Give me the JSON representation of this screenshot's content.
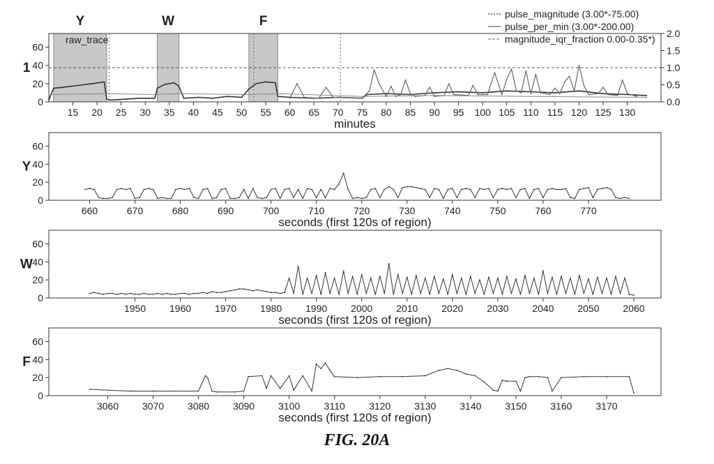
{
  "figure": {
    "caption": "FIG. 20A"
  },
  "chart_data": [
    {
      "type": "line",
      "panel_label": "1",
      "xlabel": "minutes",
      "xlim": [
        10,
        137
      ],
      "xticks": [
        15,
        20,
        25,
        30,
        35,
        40,
        45,
        50,
        55,
        60,
        65,
        70,
        75,
        80,
        85,
        90,
        95,
        100,
        105,
        110,
        115,
        120,
        125,
        130
      ],
      "ylim": [
        0,
        75
      ],
      "yticks": [
        0,
        20,
        40,
        60
      ],
      "y2lim": [
        0,
        2.0
      ],
      "y2ticks": [
        "0.0",
        "0.5",
        "1.0",
        "1.5",
        "2.0"
      ],
      "hline_y2": 1.0,
      "vline_x": [
        22.5,
        52.5,
        70.5
      ],
      "trace_label": "raw_trace",
      "regions": [
        {
          "label": "Y",
          "x0": 11,
          "x1": 22
        },
        {
          "label": "W",
          "x0": 32.5,
          "x1": 37
        },
        {
          "label": "F",
          "x0": 51.5,
          "x1": 57.5
        }
      ],
      "legend_position": "top-right",
      "series": [
        {
          "name": "pulse_magnitude (3.00*-75.00)",
          "x": [
            10,
            11,
            13,
            16,
            19,
            21.5,
            22,
            23,
            26,
            29,
            32,
            32.5,
            34,
            36,
            37,
            38,
            41,
            44,
            47,
            50,
            51.5,
            53,
            55,
            57,
            57.5,
            60,
            65,
            70,
            75,
            76,
            80,
            85,
            90,
            95,
            100,
            105,
            110,
            115,
            120,
            125,
            130,
            134
          ],
          "values": [
            2,
            15,
            16,
            18,
            20,
            22,
            3,
            2,
            3,
            4,
            4,
            15,
            19,
            21,
            17,
            4,
            5,
            4,
            6,
            5,
            14,
            20,
            22,
            21,
            6,
            5,
            4,
            5,
            4,
            8,
            9,
            8,
            10,
            11,
            10,
            12,
            11,
            10,
            12,
            9,
            8,
            7
          ]
        },
        {
          "name": "pulse_per_min (3.00*-200.00)",
          "x": [
            60,
            61.5,
            63,
            66,
            67.5,
            69,
            75,
            76.5,
            77.5,
            78.5,
            80,
            81,
            82,
            83,
            84,
            85,
            86,
            88,
            89,
            90,
            92,
            93,
            94,
            97,
            98,
            99,
            101,
            102.5,
            104,
            105,
            106,
            107,
            108,
            109,
            110,
            111,
            112,
            114,
            115,
            116,
            117,
            118,
            119,
            120,
            121,
            122,
            124,
            125,
            126,
            128,
            129,
            130,
            132
          ],
          "values": [
            4,
            20,
            5,
            4,
            16,
            5,
            4,
            12,
            35,
            20,
            6,
            17,
            6,
            8,
            24,
            9,
            6,
            7,
            16,
            6,
            7,
            20,
            8,
            7,
            18,
            8,
            8,
            32,
            8,
            25,
            36,
            12,
            10,
            34,
            9,
            30,
            10,
            8,
            15,
            9,
            22,
            28,
            12,
            40,
            18,
            8,
            9,
            16,
            8,
            7,
            24,
            9,
            6
          ]
        },
        {
          "name": "magnitude_iqr_fraction 0.00-0.35*)",
          "x": [
            10,
            22,
            32,
            37,
            51,
            58,
            75,
            90,
            110,
            134
          ],
          "values": [
            8,
            9,
            8,
            9,
            8,
            9,
            6,
            7,
            6,
            5
          ]
        }
      ]
    },
    {
      "type": "line",
      "panel_label": "Y",
      "xlabel": "seconds (first 120s of region)",
      "xlim": [
        651,
        786
      ],
      "xticks": [
        660,
        670,
        680,
        690,
        700,
        710,
        720,
        730,
        740,
        750,
        760,
        770
      ],
      "ylim": [
        0,
        75
      ],
      "yticks": [
        0,
        20,
        40,
        60
      ],
      "series": [
        {
          "x": [
            659,
            660,
            661,
            662,
            663,
            664,
            665,
            666,
            667,
            668,
            669,
            670,
            671,
            672,
            673,
            674,
            675,
            676,
            677,
            678,
            679,
            680,
            681,
            682,
            683,
            684,
            685,
            686,
            687,
            688,
            689,
            690,
            691,
            692,
            693,
            694,
            695,
            696,
            697,
            698,
            699,
            700,
            701,
            702,
            703,
            704,
            705,
            706,
            707,
            708,
            709,
            710,
            711,
            712,
            713,
            714,
            715,
            716,
            717,
            718,
            719,
            720,
            721,
            722,
            723,
            724,
            725,
            726,
            727,
            728,
            729,
            730,
            731,
            732,
            733,
            734,
            735,
            736,
            737,
            738,
            739,
            740,
            741,
            742,
            743,
            744,
            745,
            746,
            747,
            748,
            749,
            750,
            751,
            752,
            753,
            754,
            755,
            756,
            757,
            758,
            759,
            760,
            761,
            762,
            763,
            764,
            765,
            766,
            767,
            768,
            769,
            770,
            771,
            772,
            773,
            774,
            775,
            776,
            777,
            778,
            779
          ],
          "values": [
            12,
            13,
            12,
            3,
            2,
            2,
            3,
            12,
            13,
            12,
            13,
            2,
            3,
            12,
            13,
            12,
            2,
            3,
            2,
            2,
            12,
            13,
            12,
            13,
            3,
            2,
            12,
            13,
            2,
            3,
            12,
            13,
            2,
            2,
            3,
            12,
            2,
            13,
            3,
            2,
            3,
            12,
            13,
            2,
            12,
            13,
            3,
            12,
            2,
            13,
            12,
            3,
            12,
            3,
            13,
            12,
            18,
            30,
            12,
            2,
            3,
            2,
            3,
            12,
            13,
            3,
            12,
            15,
            12,
            3,
            14,
            15,
            15,
            14,
            13,
            12,
            3,
            13,
            12,
            2,
            12,
            13,
            3,
            12,
            13,
            12,
            3,
            13,
            12,
            13,
            3,
            12,
            13,
            12,
            13,
            3,
            12,
            13,
            2,
            12,
            13,
            3,
            12,
            13,
            12,
            12,
            13,
            3,
            2,
            12,
            13,
            14,
            3,
            12,
            13,
            14,
            12,
            3,
            2,
            3,
            2
          ]
        }
      ]
    },
    {
      "type": "line",
      "panel_label": "W",
      "xlabel": "seconds (first 120s of region)",
      "xlim": [
        1931,
        2066
      ],
      "xticks": [
        1950,
        1960,
        1970,
        1980,
        1990,
        2000,
        2010,
        2020,
        2030,
        2040,
        2050,
        2060
      ],
      "ylim": [
        0,
        75
      ],
      "yticks": [
        0,
        20,
        40,
        60
      ],
      "series": [
        {
          "x": [
            1940,
            1941,
            1942,
            1943,
            1944,
            1945,
            1946,
            1947,
            1948,
            1949,
            1950,
            1951,
            1952,
            1953,
            1954,
            1955,
            1956,
            1957,
            1958,
            1959,
            1960,
            1961,
            1962,
            1963,
            1964,
            1965,
            1966,
            1967,
            1968,
            1969,
            1970,
            1971,
            1972,
            1973,
            1974,
            1975,
            1976,
            1977,
            1978,
            1979,
            1980,
            1981,
            1982,
            1983,
            1984,
            1985,
            1986,
            1987,
            1988,
            1989,
            1990,
            1991,
            1992,
            1993,
            1994,
            1995,
            1996,
            1997,
            1998,
            1999,
            2000,
            2001,
            2002,
            2003,
            2004,
            2005,
            2006,
            2007,
            2008,
            2009,
            2010,
            2011,
            2012,
            2013,
            2014,
            2015,
            2016,
            2017,
            2018,
            2019,
            2020,
            2021,
            2022,
            2023,
            2024,
            2025,
            2026,
            2027,
            2028,
            2029,
            2030,
            2031,
            2032,
            2033,
            2034,
            2035,
            2036,
            2037,
            2038,
            2039,
            2040,
            2041,
            2042,
            2043,
            2044,
            2045,
            2046,
            2047,
            2048,
            2049,
            2050,
            2051,
            2052,
            2053,
            2054,
            2055,
            2056,
            2057,
            2058,
            2059,
            2060
          ],
          "values": [
            5,
            6,
            5,
            4,
            5,
            5,
            4,
            5,
            4,
            5,
            4,
            4,
            5,
            4,
            4,
            5,
            4,
            5,
            4,
            4,
            5,
            5,
            4,
            5,
            5,
            6,
            5,
            7,
            6,
            6,
            7,
            8,
            9,
            10,
            10,
            9,
            8,
            9,
            8,
            7,
            6,
            6,
            5,
            6,
            22,
            5,
            35,
            4,
            22,
            5,
            25,
            4,
            28,
            5,
            22,
            4,
            30,
            5,
            24,
            4,
            26,
            5,
            22,
            4,
            24,
            5,
            38,
            4,
            26,
            5,
            23,
            4,
            25,
            5,
            22,
            4,
            24,
            5,
            21,
            4,
            26,
            5,
            22,
            4,
            24,
            5,
            20,
            4,
            23,
            5,
            22,
            4,
            24,
            5,
            21,
            4,
            25,
            5,
            22,
            4,
            30,
            5,
            23,
            4,
            24,
            5,
            22,
            4,
            25,
            5,
            21,
            4,
            23,
            5,
            22,
            4,
            24,
            5,
            22,
            4,
            3
          ]
        }
      ]
    },
    {
      "type": "line",
      "panel_label": "F",
      "xlabel": "seconds (first 120s of region)",
      "xlim": [
        3047,
        3182
      ],
      "xticks": [
        3060,
        3070,
        3080,
        3090,
        3100,
        3110,
        3120,
        3130,
        3140,
        3150,
        3160,
        3170
      ],
      "ylim": [
        0,
        75
      ],
      "yticks": [
        0,
        20,
        40,
        60
      ],
      "series": [
        {
          "x": [
            3056,
            3060,
            3065,
            3070,
            3075,
            3080,
            3081.5,
            3082,
            3083,
            3084,
            3088,
            3090,
            3091,
            3094,
            3095,
            3096,
            3098,
            3100,
            3101,
            3103,
            3105,
            3106,
            3107,
            3108,
            3109,
            3110,
            3115,
            3120,
            3125,
            3130,
            3133,
            3135,
            3137,
            3139,
            3141,
            3143,
            3145,
            3146,
            3147,
            3148,
            3150,
            3151,
            3152,
            3153,
            3155,
            3157,
            3158,
            3160,
            3165,
            3170,
            3175,
            3176
          ],
          "values": [
            7,
            6,
            5,
            5,
            5,
            5,
            22,
            20,
            5,
            4,
            4,
            5,
            21,
            22,
            8,
            22,
            8,
            22,
            6,
            22,
            5,
            35,
            30,
            36,
            28,
            21,
            20,
            21,
            21,
            22,
            28,
            30,
            28,
            24,
            22,
            15,
            6,
            5,
            17,
            16,
            16,
            5,
            20,
            21,
            21,
            20,
            5,
            20,
            21,
            21,
            21,
            3
          ]
        }
      ]
    }
  ]
}
